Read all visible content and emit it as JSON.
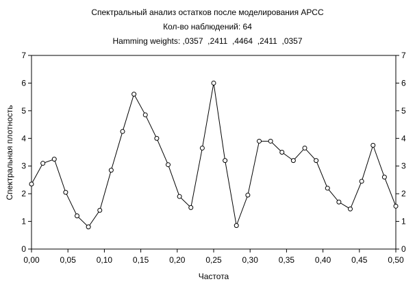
{
  "chart_data": {
    "type": "line",
    "title": "Спектральный анализ остатков после моделирования АРСС",
    "subtitle_lines": [
      "Кол-во наблюдений: 64",
      "Hamming weights: ,0357  ,2411  ,4464  ,2411  ,0357"
    ],
    "xlabel": "Частота",
    "ylabel": "Спектральная плотность",
    "xlim": [
      0,
      0.5
    ],
    "ylim": [
      0,
      7
    ],
    "x_ticks": [
      "0,00",
      "0,05",
      "0,10",
      "0,15",
      "0,20",
      "0,25",
      "0,30",
      "0,35",
      "0,40",
      "0,45",
      "0,50"
    ],
    "y_ticks": [
      "0",
      "1",
      "2",
      "3",
      "4",
      "5",
      "6",
      "7"
    ],
    "grid": false,
    "marker": "open-circle",
    "line_color": "#000000",
    "x": [
      0.0,
      0.015625,
      0.03125,
      0.046875,
      0.0625,
      0.078125,
      0.09375,
      0.109375,
      0.125,
      0.140625,
      0.15625,
      0.171875,
      0.1875,
      0.203125,
      0.21875,
      0.234375,
      0.25,
      0.265625,
      0.28125,
      0.296875,
      0.3125,
      0.328125,
      0.34375,
      0.359375,
      0.375,
      0.390625,
      0.40625,
      0.421875,
      0.4375,
      0.453125,
      0.46875,
      0.484375,
      0.5
    ],
    "values": [
      2.35,
      3.1,
      3.25,
      2.05,
      1.2,
      0.8,
      1.4,
      2.85,
      4.25,
      5.6,
      4.85,
      4.0,
      3.05,
      1.9,
      1.5,
      3.65,
      6.0,
      3.2,
      0.85,
      1.95,
      3.9,
      3.9,
      3.5,
      3.2,
      3.65,
      3.2,
      2.2,
      1.7,
      1.45,
      2.45,
      3.75,
      2.6,
      1.55
    ]
  }
}
